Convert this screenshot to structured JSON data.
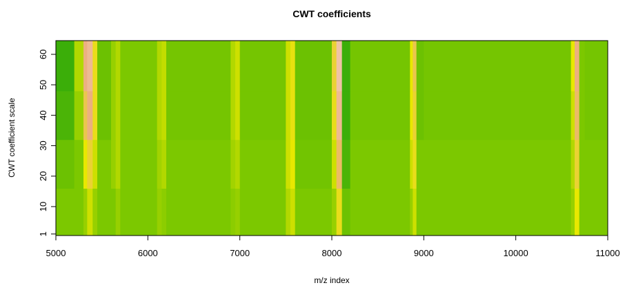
{
  "chart_data": {
    "type": "heatmap",
    "title": "CWT coefficients",
    "x_label": "m/z index",
    "y_label": "CWT coefficient scale",
    "xlim": [
      5000,
      11000
    ],
    "ylim": [
      0.5,
      64.5
    ],
    "xticks": [
      5000,
      6000,
      7000,
      8000,
      9000,
      10000,
      11000
    ],
    "yticks": [
      1,
      10,
      20,
      30,
      40,
      50,
      60
    ],
    "xbins": [
      5000,
      5200,
      5300,
      5340,
      5400,
      5450,
      5600,
      5650,
      5700,
      6100,
      6150,
      6200,
      6900,
      6950,
      7000,
      7500,
      7550,
      7600,
      8000,
      8050,
      8110,
      8200,
      8850,
      8880,
      8920,
      9000,
      10600,
      10640,
      10690,
      10750,
      11000
    ],
    "ybins": [
      0.5,
      16,
      32,
      48,
      64.5
    ],
    "zlim": [
      0,
      1
    ],
    "colorscale": [
      [
        0,
        "#0a9a10"
      ],
      [
        0.35,
        "#7cc800"
      ],
      [
        0.55,
        "#e8e800"
      ],
      [
        0.8,
        "#ecb080"
      ],
      [
        1,
        "#f2d6cc"
      ]
    ],
    "values": [
      [
        0.35,
        0.35,
        0.4,
        0.5,
        0.4,
        0.35,
        0.35,
        0.4,
        0.35,
        0.4,
        0.38,
        0.35,
        0.38,
        0.4,
        0.35,
        0.45,
        0.5,
        0.35,
        0.4,
        0.6,
        0.3,
        0.35,
        0.4,
        0.5,
        0.35,
        0.35,
        0.4,
        0.55,
        0.35,
        0.35
      ],
      [
        0.3,
        0.35,
        0.55,
        0.65,
        0.5,
        0.35,
        0.4,
        0.45,
        0.35,
        0.42,
        0.45,
        0.35,
        0.42,
        0.45,
        0.35,
        0.5,
        0.55,
        0.32,
        0.5,
        0.75,
        0.2,
        0.35,
        0.5,
        0.6,
        0.35,
        0.35,
        0.45,
        0.65,
        0.35,
        0.35
      ],
      [
        0.2,
        0.4,
        0.7,
        0.8,
        0.6,
        0.3,
        0.4,
        0.45,
        0.35,
        0.45,
        0.48,
        0.33,
        0.45,
        0.5,
        0.33,
        0.5,
        0.58,
        0.3,
        0.6,
        0.85,
        0.15,
        0.33,
        0.55,
        0.65,
        0.3,
        0.33,
        0.5,
        0.75,
        0.35,
        0.33
      ],
      [
        0.15,
        0.45,
        0.8,
        0.85,
        0.6,
        0.3,
        0.4,
        0.45,
        0.35,
        0.45,
        0.48,
        0.33,
        0.45,
        0.5,
        0.33,
        0.5,
        0.58,
        0.3,
        0.65,
        0.9,
        0.15,
        0.33,
        0.55,
        0.7,
        0.3,
        0.33,
        0.55,
        0.8,
        0.35,
        0.33
      ]
    ]
  }
}
